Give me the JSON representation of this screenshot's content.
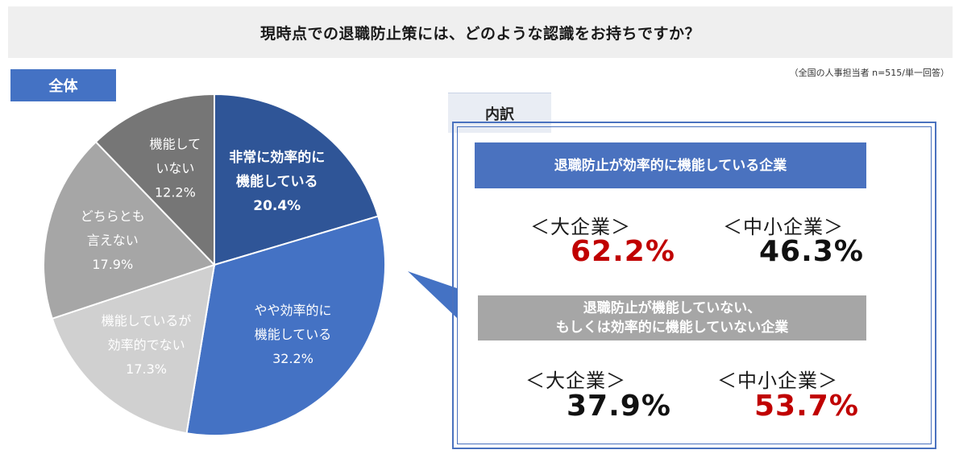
{
  "header": {
    "title": "現時点での退職防止策には、どのような認識をお持ちですか？",
    "note": "（全国の人事担当者 n=515/単一回答）",
    "tag_all": "全体",
    "tag_detail": "内訳"
  },
  "chart_data": {
    "type": "pie",
    "start_angle_deg": 0,
    "direction": "clockwise",
    "slices": [
      {
        "lines": [
          "非常に効率的に",
          "機能している"
        ],
        "value": 20.4,
        "value_label": "20.4%",
        "color": "#2f5597",
        "text_color": "#ffffff",
        "bold": true
      },
      {
        "lines": [
          "やや効率的に",
          "機能している"
        ],
        "value": 32.2,
        "value_label": "32.2%",
        "color": "#4472c4",
        "text_color": "#ffffff",
        "bold": false
      },
      {
        "lines": [
          "機能しているが",
          "効率的でない"
        ],
        "value": 17.3,
        "value_label": "17.3%",
        "color": "#d0d0d0",
        "text_color": "#ffffff",
        "bold": false
      },
      {
        "lines": [
          "どちらとも",
          "言えない"
        ],
        "value": 17.9,
        "value_label": "17.9%",
        "color": "#a6a6a6",
        "text_color": "#ffffff",
        "bold": false
      },
      {
        "lines": [
          "機能して",
          "いない"
        ],
        "value": 12.2,
        "value_label": "12.2%",
        "color": "#767676",
        "text_color": "#ffffff",
        "bold": false
      }
    ]
  },
  "breakdown": {
    "functioning": {
      "heading": "退職防止が効率的に機能している企業",
      "large_label": "＜大企業＞",
      "large_value": "62.2%",
      "sme_label": "＜中小企業＞",
      "sme_value": "46.3%"
    },
    "not_functioning": {
      "heading_line1": "退職防止が機能していない、",
      "heading_line2": "もしくは効率的に機能していない企業",
      "large_label": "＜大企業＞",
      "large_value": "37.9%",
      "sme_label": "＜中小企業＞",
      "sme_value": "53.7%"
    },
    "colors": {
      "highlight": "#c00000",
      "normal": "#111111"
    }
  }
}
